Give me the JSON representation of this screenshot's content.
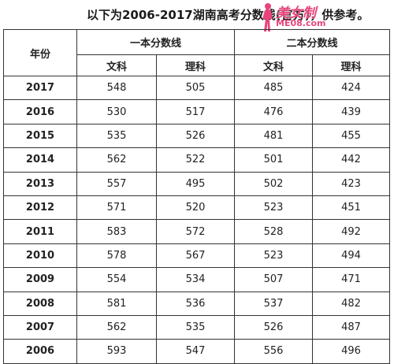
{
  "title": "以下为2006-2017湖南高考分数线(官方)，供参考。",
  "watermark": {
    "text": "美女制",
    "sub": "ME08.com"
  },
  "table": {
    "year_header": "年份",
    "group1_header": "一本分数线",
    "group2_header": "二本分数线",
    "sub_headers": [
      "文科",
      "理科",
      "文科",
      "理科"
    ],
    "rows": [
      {
        "year": "2017",
        "values": [
          "548",
          "505",
          "485",
          "424"
        ]
      },
      {
        "year": "2016",
        "values": [
          "530",
          "517",
          "476",
          "439"
        ]
      },
      {
        "year": "2015",
        "values": [
          "535",
          "526",
          "481",
          "455"
        ]
      },
      {
        "year": "2014",
        "values": [
          "562",
          "522",
          "501",
          "442"
        ]
      },
      {
        "year": "2013",
        "values": [
          "557",
          "495",
          "502",
          "423"
        ]
      },
      {
        "year": "2012",
        "values": [
          "571",
          "520",
          "523",
          "451"
        ]
      },
      {
        "year": "2011",
        "values": [
          "583",
          "572",
          "528",
          "492"
        ]
      },
      {
        "year": "2010",
        "values": [
          "578",
          "567",
          "523",
          "494"
        ]
      },
      {
        "year": "2009",
        "values": [
          "554",
          "534",
          "507",
          "471"
        ]
      },
      {
        "year": "2008",
        "values": [
          "581",
          "536",
          "537",
          "482"
        ]
      },
      {
        "year": "2007",
        "values": [
          "562",
          "535",
          "526",
          "487"
        ]
      },
      {
        "year": "2006",
        "values": [
          "593",
          "547",
          "556",
          "496"
        ]
      }
    ]
  }
}
